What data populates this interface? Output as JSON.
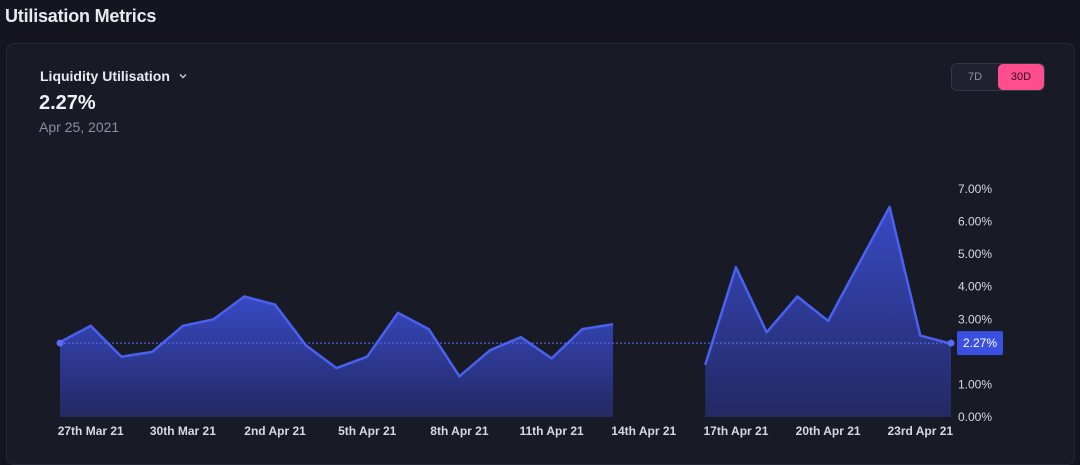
{
  "page": {
    "title": "Utilisation Metrics"
  },
  "card": {
    "metric_label": "Liquidity Utilisation",
    "value": "2.27%",
    "date": "Apr 25, 2021",
    "range_options": [
      "7D",
      "30D"
    ],
    "active_range": "30D"
  },
  "colors": {
    "series": "#4a61f0",
    "area_top": "#3a4ccc",
    "area_bottom": "#232a66",
    "accent": "#ff4d8d"
  },
  "chart_data": {
    "type": "area",
    "series": [
      {
        "segments": [
          [
            {
              "x": "2021-03-26",
              "y": 2.3
            },
            {
              "x": "2021-03-27",
              "y": 2.8
            },
            {
              "x": "2021-03-28",
              "y": 1.85
            },
            {
              "x": "2021-03-29",
              "y": 2.0
            },
            {
              "x": "2021-03-30",
              "y": 2.8
            },
            {
              "x": "2021-03-31",
              "y": 3.0
            },
            {
              "x": "2021-04-01",
              "y": 3.7
            },
            {
              "x": "2021-04-02",
              "y": 3.45
            },
            {
              "x": "2021-04-03",
              "y": 2.2
            },
            {
              "x": "2021-04-04",
              "y": 1.5
            },
            {
              "x": "2021-04-05",
              "y": 1.85
            },
            {
              "x": "2021-04-06",
              "y": 3.2
            },
            {
              "x": "2021-04-07",
              "y": 2.7
            },
            {
              "x": "2021-04-08",
              "y": 1.25
            },
            {
              "x": "2021-04-09",
              "y": 2.05
            },
            {
              "x": "2021-04-10",
              "y": 2.45
            },
            {
              "x": "2021-04-11",
              "y": 1.8
            },
            {
              "x": "2021-04-12",
              "y": 2.7
            },
            {
              "x": "2021-04-13",
              "y": 2.85
            }
          ],
          [
            {
              "x": "2021-04-16",
              "y": 1.6
            },
            {
              "x": "2021-04-17",
              "y": 4.6
            },
            {
              "x": "2021-04-18",
              "y": 2.6
            },
            {
              "x": "2021-04-19",
              "y": 3.7
            },
            {
              "x": "2021-04-20",
              "y": 2.95
            },
            {
              "x": "2021-04-21",
              "y": 4.7
            },
            {
              "x": "2021-04-22",
              "y": 6.45
            },
            {
              "x": "2021-04-23",
              "y": 2.5
            },
            {
              "x": "2021-04-24",
              "y": 2.25
            }
          ]
        ]
      }
    ],
    "reference_line": {
      "y": 2.27,
      "label": "2.27%"
    },
    "x_ticks": [
      {
        "x": "2021-03-27",
        "label": "27th Mar 21"
      },
      {
        "x": "2021-03-30",
        "label": "30th Mar 21"
      },
      {
        "x": "2021-04-02",
        "label": "2nd Apr 21"
      },
      {
        "x": "2021-04-05",
        "label": "5th Apr 21"
      },
      {
        "x": "2021-04-08",
        "label": "8th Apr 21"
      },
      {
        "x": "2021-04-11",
        "label": "11th Apr 21"
      },
      {
        "x": "2021-04-14",
        "label": "14th Apr 21"
      },
      {
        "x": "2021-04-17",
        "label": "17th Apr 21"
      },
      {
        "x": "2021-04-20",
        "label": "20th Apr 21"
      },
      {
        "x": "2021-04-23",
        "label": "23rd Apr 21"
      }
    ],
    "y_ticks": [
      {
        "y": 0,
        "label": "0.00%"
      },
      {
        "y": 1,
        "label": "1.00%"
      },
      {
        "y": 3,
        "label": "3.00%"
      },
      {
        "y": 4,
        "label": "4.00%"
      },
      {
        "y": 5,
        "label": "5.00%"
      },
      {
        "y": 6,
        "label": "6.00%"
      },
      {
        "y": 7,
        "label": "7.00%"
      }
    ],
    "ylim": [
      0,
      7
    ],
    "xlim": [
      "2021-03-26",
      "2021-04-24"
    ],
    "y_axis_position": "right",
    "grid": false
  }
}
